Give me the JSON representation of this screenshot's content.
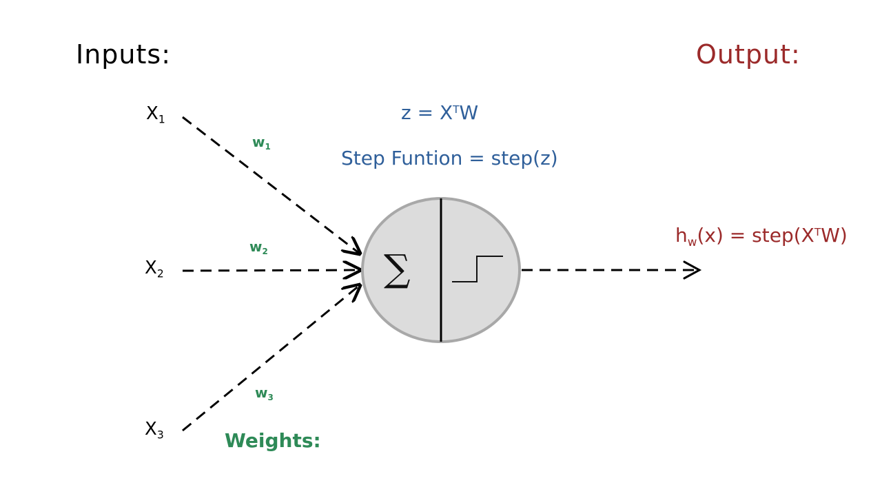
{
  "headings": {
    "inputs": "Inputs:",
    "output": "Output:",
    "weights": "Weights:"
  },
  "inputs": [
    {
      "base": "X",
      "sub": "1"
    },
    {
      "base": "X",
      "sub": "2"
    },
    {
      "base": "X",
      "sub": "3"
    }
  ],
  "weights": [
    {
      "base": "w",
      "sub": "1"
    },
    {
      "base": "w",
      "sub": "2"
    },
    {
      "base": "w",
      "sub": "3"
    }
  ],
  "equations": {
    "z_left": "z = X",
    "z_sup": "T",
    "z_right": "W",
    "step": "Step Funtion = step(z)"
  },
  "output_formula": {
    "h": "h",
    "h_sub": "w",
    "mid": "(x) = step(X",
    "sup": "T",
    "end": "W)"
  },
  "neuron": {
    "sum_symbol": "∑"
  },
  "colors": {
    "headings_inputs": "#000000",
    "headings_output": "#9b2a2a",
    "weights": "#2e8a57",
    "equations": "#2f5f9a",
    "neuron_fill": "#dcdcdc",
    "neuron_border": "#a8a8a8"
  },
  "icons": [
    "arrow-right-icon",
    "step-function-icon",
    "sigma-icon"
  ]
}
